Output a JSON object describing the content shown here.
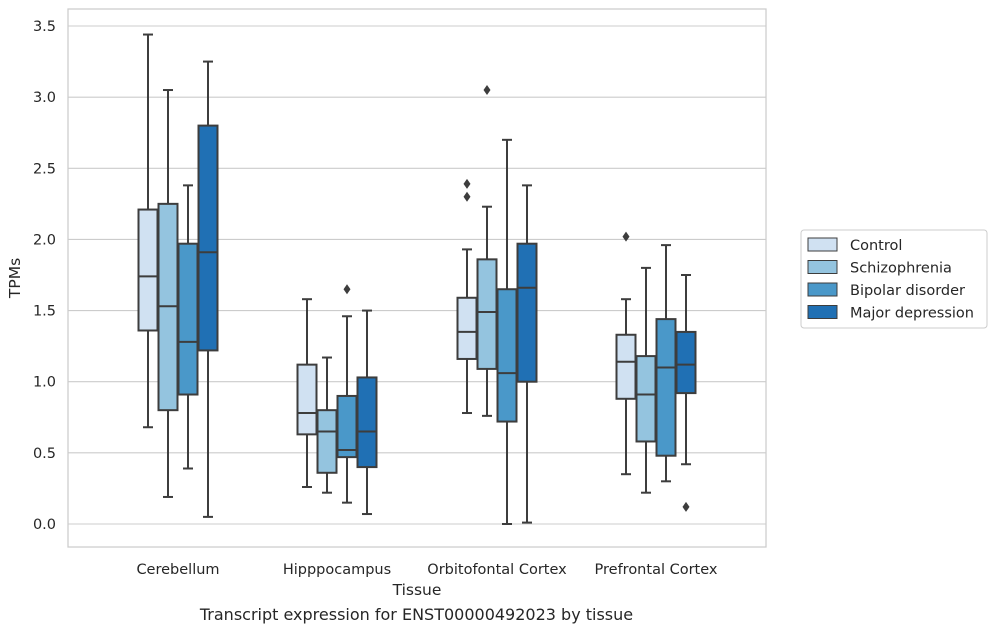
{
  "caption": "Transcript expression for ENST00000492023 by tissue",
  "chart_data": {
    "type": "boxplot",
    "xlabel": "Tissue",
    "ylabel": "TPMs",
    "ylim": [
      -0.17,
      3.6
    ],
    "yticks": [
      0.0,
      0.5,
      1.0,
      1.5,
      2.0,
      2.5,
      3.0,
      3.5
    ],
    "ytick_labels": [
      "0.0",
      "0.5",
      "1.0",
      "1.5",
      "2.0",
      "2.5",
      "3.0",
      "3.5"
    ],
    "grid": true,
    "legend_position": "right",
    "categories": [
      "Cerebellum",
      "Hipppocampus",
      "Orbitofontal Cortex",
      "Prefrontal Cortex"
    ],
    "series": [
      {
        "name": "Control",
        "color": "#d0e1f2",
        "boxes": [
          {
            "whislo": 0.68,
            "q1": 1.36,
            "med": 1.74,
            "q3": 2.21,
            "whishi": 3.44,
            "fliers": []
          },
          {
            "whislo": 0.26,
            "q1": 0.63,
            "med": 0.78,
            "q3": 1.12,
            "whishi": 1.58,
            "fliers": []
          },
          {
            "whislo": 0.78,
            "q1": 1.16,
            "med": 1.35,
            "q3": 1.59,
            "whishi": 1.93,
            "fliers": [
              2.3,
              2.39
            ]
          },
          {
            "whislo": 0.35,
            "q1": 0.88,
            "med": 1.14,
            "q3": 1.33,
            "whishi": 1.58,
            "fliers": [
              2.02
            ]
          }
        ]
      },
      {
        "name": "Schizophrenia",
        "color": "#94c4df",
        "boxes": [
          {
            "whislo": 0.19,
            "q1": 0.8,
            "med": 1.53,
            "q3": 2.25,
            "whishi": 3.05,
            "fliers": []
          },
          {
            "whislo": 0.22,
            "q1": 0.36,
            "med": 0.65,
            "q3": 0.8,
            "whishi": 1.17,
            "fliers": []
          },
          {
            "whislo": 0.76,
            "q1": 1.09,
            "med": 1.49,
            "q3": 1.86,
            "whishi": 2.23,
            "fliers": [
              3.05
            ]
          },
          {
            "whislo": 0.22,
            "q1": 0.58,
            "med": 0.91,
            "q3": 1.18,
            "whishi": 1.8,
            "fliers": []
          }
        ]
      },
      {
        "name": "Bipolar disorder",
        "color": "#4a98c9",
        "boxes": [
          {
            "whislo": 0.39,
            "q1": 0.91,
            "med": 1.28,
            "q3": 1.97,
            "whishi": 2.38,
            "fliers": []
          },
          {
            "whislo": 0.15,
            "q1": 0.47,
            "med": 0.52,
            "q3": 0.9,
            "whishi": 1.46,
            "fliers": [
              1.65
            ]
          },
          {
            "whislo": 0.0,
            "q1": 0.72,
            "med": 1.06,
            "q3": 1.65,
            "whishi": 2.7,
            "fliers": []
          },
          {
            "whislo": 0.3,
            "q1": 0.48,
            "med": 1.1,
            "q3": 1.44,
            "whishi": 1.96,
            "fliers": []
          }
        ]
      },
      {
        "name": "Major depression",
        "color": "#2070b4",
        "boxes": [
          {
            "whislo": 0.05,
            "q1": 1.22,
            "med": 1.91,
            "q3": 2.8,
            "whishi": 3.25,
            "fliers": []
          },
          {
            "whislo": 0.07,
            "q1": 0.4,
            "med": 0.65,
            "q3": 1.03,
            "whishi": 1.5,
            "fliers": []
          },
          {
            "whislo": 0.01,
            "q1": 1.0,
            "med": 1.66,
            "q3": 1.97,
            "whishi": 2.38,
            "fliers": []
          },
          {
            "whislo": 0.42,
            "q1": 0.92,
            "med": 1.12,
            "q3": 1.35,
            "whishi": 1.75,
            "fliers": [
              0.12
            ]
          }
        ]
      }
    ]
  }
}
